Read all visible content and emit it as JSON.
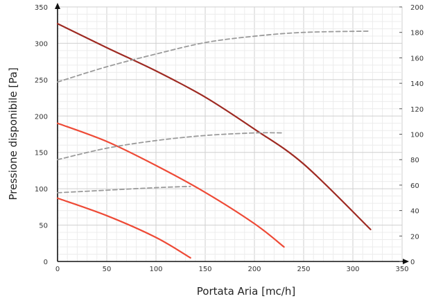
{
  "chart_data": {
    "type": "line",
    "title": "",
    "xlabel": "Portata Aria [mc/h]",
    "ylabel": "Pressione disponibile [Pa]",
    "xlim": [
      0,
      350
    ],
    "ylim": [
      0,
      350
    ],
    "y2lim": [
      0,
      200
    ],
    "x_ticks": [
      "0",
      "50",
      "100",
      "150",
      "200",
      "250",
      "300",
      "350"
    ],
    "y_ticks": [
      "0",
      "50",
      "100",
      "150",
      "200",
      "250",
      "300",
      "350"
    ],
    "y2_ticks": [
      "0",
      "20",
      "40",
      "60",
      "80",
      "100",
      "120",
      "140",
      "160",
      "180",
      "200"
    ],
    "grid": true,
    "legend": "none",
    "colors": {
      "curve_high": "#9e2a22",
      "curve_low": "#ee4a36",
      "dashed": "#9a9a9a"
    },
    "series": [
      {
        "axis": "left",
        "style": "solid",
        "color_key": "curve_high",
        "x": [
          0,
          50,
          100,
          150,
          200,
          250,
          318
        ],
        "y": [
          327,
          294,
          262,
          226,
          182,
          134,
          44
        ]
      },
      {
        "axis": "left",
        "style": "solid",
        "color_key": "curve_low",
        "x": [
          0,
          50,
          100,
          150,
          200,
          230
        ],
        "y": [
          190,
          165,
          132,
          95,
          52,
          20
        ]
      },
      {
        "axis": "left",
        "style": "solid",
        "color_key": "curve_low",
        "x": [
          0,
          50,
          100,
          135
        ],
        "y": [
          87,
          63,
          33,
          5
        ]
      },
      {
        "axis": "right",
        "style": "dashed",
        "color_key": "dashed",
        "x": [
          0,
          50,
          100,
          150,
          200,
          250,
          318
        ],
        "y": [
          141,
          153,
          163,
          172,
          177,
          180,
          181
        ]
      },
      {
        "axis": "right",
        "style": "dashed",
        "color_key": "dashed",
        "x": [
          0,
          50,
          100,
          150,
          200,
          230
        ],
        "y": [
          80,
          89,
          95,
          99,
          101,
          101
        ]
      },
      {
        "axis": "right",
        "style": "dashed",
        "color_key": "dashed",
        "x": [
          0,
          50,
          100,
          135
        ],
        "y": [
          54,
          56,
          58,
          59
        ]
      }
    ]
  }
}
